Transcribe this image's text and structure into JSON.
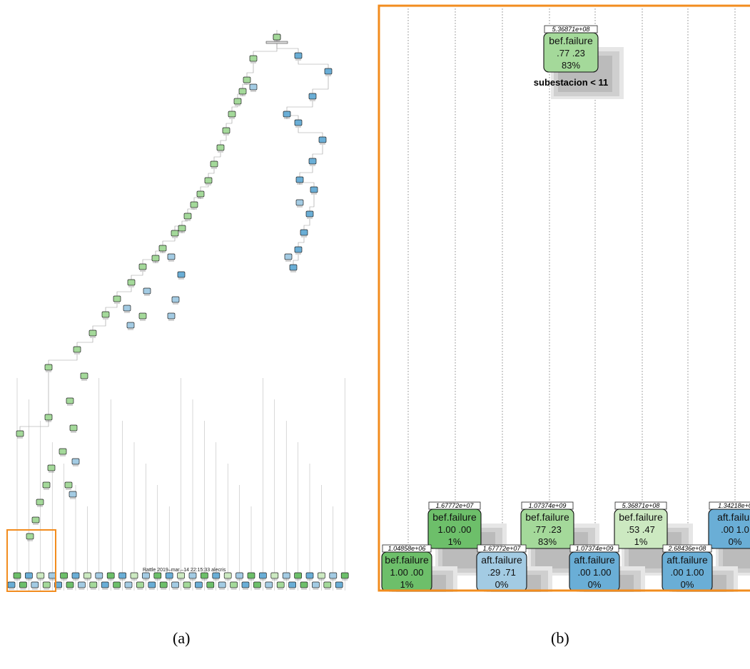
{
  "credit": "Rattle 2019–mar.–14 22:15:33 alecris",
  "captions": {
    "a": "(a)",
    "b": "(b)"
  },
  "colors": {
    "green_dark": "#6dbf6a",
    "green_mid": "#a4d99a",
    "green_light": "#cce9c1",
    "blue_dark": "#6aaed6",
    "blue_light": "#a3cbe3",
    "frame": "#f28c1e"
  },
  "zoom_tree": {
    "root": {
      "id": "5.36871e+08",
      "label": "bef.failure",
      "probs": ".77  .23",
      "pct": "83%",
      "split": "subestacion < 11",
      "color": "green_mid"
    },
    "upper_leaves": [
      {
        "id": "1.67772e+07",
        "label": "bef.failure",
        "probs": "1.00  .00",
        "pct": "1%",
        "color": "green_dark"
      },
      {
        "id": "1.07374e+09",
        "label": "bef.failure",
        "probs": ".77  .23",
        "pct": "83%",
        "color": "green_mid"
      },
      {
        "id": "5.36871e+08",
        "label": "bef.failure",
        "probs": ".53  .47",
        "pct": "1%",
        "color": "green_light"
      },
      {
        "id": "1.34218e+0",
        "label": "aft.failur",
        "probs": ".00  1.0",
        "pct": "0%",
        "color": "blue_dark"
      }
    ],
    "lower_leaves": [
      {
        "id": "1.04858e+06",
        "label": "bef.failure",
        "probs": "1.00  .00",
        "pct": "1%",
        "color": "green_dark"
      },
      {
        "id": "1.67772e+07",
        "label": "aft.failure",
        "probs": ".29  .71",
        "pct": "0%",
        "color": "blue_light"
      },
      {
        "id": "1.07374e+09",
        "label": "aft.failure",
        "probs": ".00  1.00",
        "pct": "0%",
        "color": "blue_dark"
      },
      {
        "id": "2.68436e+08",
        "label": "aft.failure",
        "probs": ".00  1.00",
        "pct": "0%",
        "color": "blue_dark"
      }
    ]
  }
}
